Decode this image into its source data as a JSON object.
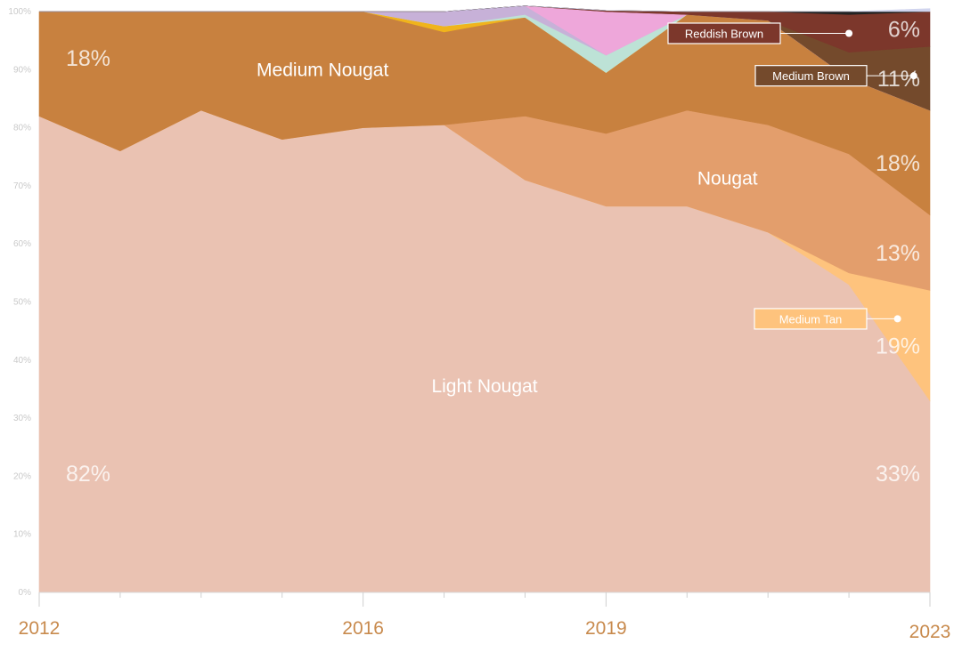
{
  "chart_data": {
    "type": "area",
    "stacked": "percent",
    "ylim": [
      0,
      100
    ],
    "grid": false,
    "x": [
      2012,
      2013,
      2014,
      2015,
      2016,
      2017,
      2018,
      2019,
      2020,
      2021,
      2022,
      2023
    ],
    "x_tick_labels": [
      {
        "x": 2012,
        "label": "2012"
      },
      {
        "x": 2016,
        "label": "2016"
      },
      {
        "x": 2019,
        "label": "2019"
      },
      {
        "x": 2023,
        "label": "2023"
      }
    ],
    "y_tick_labels": [
      "0%",
      "10%",
      "20%",
      "30%",
      "40%",
      "50%",
      "60%",
      "70%",
      "80%",
      "90%",
      "100%"
    ],
    "series": [
      {
        "name": "Light Nougat",
        "color": "#eac2b2",
        "values": [
          82,
          76,
          83,
          78,
          80,
          80.5,
          71,
          66.5,
          66.5,
          62,
          53,
          33
        ]
      },
      {
        "name": "Medium Tan",
        "color": "#fec37d",
        "values": [
          0,
          0,
          0,
          0,
          0,
          0,
          0,
          0,
          0,
          0,
          2,
          19
        ]
      },
      {
        "name": "Nougat",
        "color": "#e39e6c",
        "values": [
          0,
          0,
          0,
          0,
          0,
          0,
          11,
          12.5,
          16.5,
          18.5,
          20.5,
          13
        ]
      },
      {
        "name": "Medium Nougat",
        "color": "#c8813f",
        "values": [
          18,
          24,
          17,
          22,
          20,
          16,
          17,
          10.5,
          16.5,
          18,
          13,
          18
        ]
      },
      {
        "name": "",
        "color": "#f0b41c",
        "values": [
          0,
          0,
          0,
          0,
          0,
          1,
          0,
          0,
          0,
          0,
          0,
          0
        ]
      },
      {
        "name": "",
        "color": "#bde2d6",
        "values": [
          0,
          0,
          0,
          0,
          0,
          0,
          0.5,
          3,
          0,
          0,
          0,
          0
        ]
      },
      {
        "name": "",
        "color": "#c7b1d8",
        "values": [
          0,
          0,
          0,
          0,
          0,
          2.5,
          1.5,
          0,
          0,
          0,
          0,
          0
        ]
      },
      {
        "name": "",
        "color": "#eea7da",
        "values": [
          0,
          0,
          0,
          0,
          0,
          0,
          0,
          7.5,
          0,
          0,
          0,
          0
        ]
      },
      {
        "name": "Medium Brown",
        "color": "#744a2c",
        "values": [
          0,
          0,
          0,
          0,
          0,
          0,
          0,
          0,
          0,
          0,
          4.5,
          11
        ]
      },
      {
        "name": "Reddish Brown",
        "color": "#7c372b",
        "values": [
          0,
          0,
          0,
          0,
          0,
          0,
          0,
          0.2,
          0.5,
          1.5,
          6.5,
          6
        ]
      },
      {
        "name": "",
        "color": "#222222",
        "values": [
          0,
          0,
          0,
          0,
          0,
          0,
          0,
          0,
          0,
          0,
          0.5,
          0
        ]
      },
      {
        "name": "",
        "color": "#d0d4ee",
        "values": [
          0,
          0,
          0,
          0,
          0,
          0,
          0,
          0,
          0,
          0,
          0,
          0.5
        ]
      }
    ],
    "annotations": {
      "series_labels": [
        {
          "series": "Medium Nougat",
          "text": "Medium Nougat"
        },
        {
          "series": "Nougat",
          "text": "Nougat"
        },
        {
          "series": "Light Nougat",
          "text": "Light Nougat"
        }
      ],
      "callouts": [
        {
          "series": "Reddish Brown",
          "text": "Reddish Brown"
        },
        {
          "series": "Medium Brown",
          "text": "Medium Brown"
        },
        {
          "series": "Medium Tan",
          "text": "Medium Tan"
        }
      ],
      "start_percents": [
        {
          "series": "Medium Nougat",
          "text": "18%"
        },
        {
          "series": "Light Nougat",
          "text": "82%"
        }
      ],
      "end_percents": [
        {
          "series": "Reddish Brown",
          "text": "6%"
        },
        {
          "series": "Medium Brown",
          "text": "11%"
        },
        {
          "series": "Medium Nougat",
          "text": "18%"
        },
        {
          "series": "Nougat",
          "text": "13%"
        },
        {
          "series": "Medium Tan",
          "text": "19%"
        },
        {
          "series": "Light Nougat",
          "text": "33%"
        }
      ]
    }
  }
}
